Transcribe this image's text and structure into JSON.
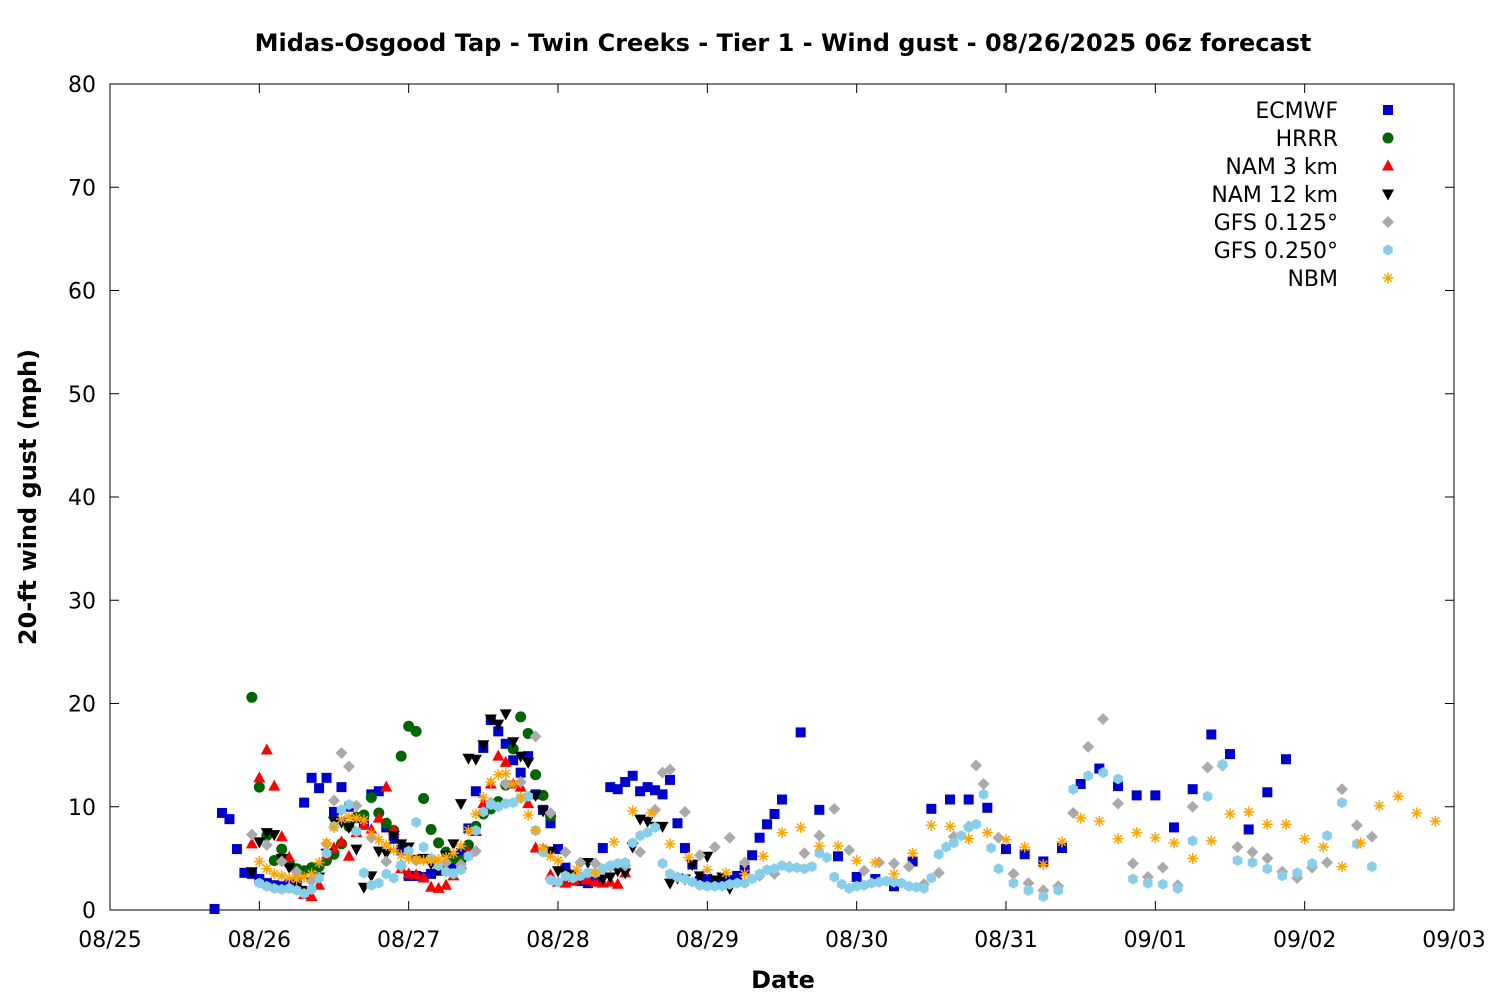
{
  "chart_data": {
    "type": "scatter",
    "title": "Midas-Osgood Tap - Twin Creeks - Tier 1 - Wind gust - 08/26/2025 06z forecast",
    "xlabel": "Date",
    "ylabel": "20-ft wind gust (mph)",
    "xlim": [
      "08/25",
      "09/03"
    ],
    "ylim": [
      0,
      80
    ],
    "x_ticks": [
      "08/25",
      "08/26",
      "08/27",
      "08/28",
      "08/29",
      "08/30",
      "08/31",
      "09/01",
      "09/02",
      "09/03"
    ],
    "y_ticks": [
      "0",
      "10",
      "20",
      "30",
      "40",
      "50",
      "60",
      "70",
      "80"
    ],
    "x_unit": "days from 08/25 00z",
    "grid": false,
    "legend_position": "top-right",
    "series": [
      {
        "name": "ECMWF",
        "marker": "square",
        "color": "#0000cc",
        "x": [
          0.7,
          0.75,
          0.8,
          0.85,
          0.9,
          0.95,
          1.0,
          1.05,
          1.1,
          1.15,
          1.2,
          1.25,
          1.3,
          1.35,
          1.4,
          1.45,
          1.5,
          1.55,
          1.6,
          1.65,
          1.7,
          1.75,
          1.8,
          1.85,
          1.9,
          1.95,
          2.0,
          2.05,
          2.1,
          2.15,
          2.2,
          2.25,
          2.3,
          2.35,
          2.4,
          2.45,
          2.5,
          2.55,
          2.6,
          2.65,
          2.7,
          2.75,
          2.8,
          2.85,
          2.9,
          2.95,
          3.0,
          3.05,
          3.1,
          3.15,
          3.2,
          3.25,
          3.3,
          3.35,
          3.4,
          3.45,
          3.5,
          3.55,
          3.6,
          3.65,
          3.7,
          3.75,
          3.8,
          3.85,
          3.9,
          3.95,
          4.0,
          4.05,
          4.1,
          4.15,
          4.2,
          4.25,
          4.3,
          4.35,
          4.4,
          4.45,
          4.5,
          4.625,
          4.75,
          4.875,
          5.0,
          5.125,
          5.25,
          5.375,
          5.5,
          5.625,
          5.75,
          5.875,
          6.0,
          6.125,
          6.25,
          6.375,
          6.5,
          6.625,
          6.75,
          6.875,
          7.0,
          7.125,
          7.25,
          7.375,
          7.5,
          7.625,
          7.75,
          7.875,
          8.0,
          8.125,
          8.25,
          8.375,
          8.5,
          8.625
        ],
        "y": [
          0.1,
          9.4,
          8.8,
          5.9,
          3.6,
          3.5,
          3.0,
          2.6,
          2.4,
          2.3,
          2.5,
          2.7,
          10.4,
          12.8,
          11.8,
          12.8,
          9.5,
          11.9,
          10.0,
          8.9,
          8.5,
          11.2,
          11.5,
          8.0,
          6.9,
          5.8,
          3.3,
          3.3,
          3.2,
          3.5,
          3.8,
          4.0,
          4.5,
          5.5,
          7.9,
          11.5,
          15.7,
          18.4,
          17.3,
          16.1,
          14.5,
          13.3,
          14.9,
          11.2,
          9.7,
          8.4,
          5.9,
          4.1,
          3.3,
          2.8,
          2.6,
          3.0,
          6.0,
          11.9,
          11.7,
          12.4,
          13.0,
          11.5,
          11.9,
          11.6,
          11.2,
          12.6,
          8.4,
          6.0,
          4.4,
          2.8,
          3.0,
          2.6,
          2.6,
          2.9,
          3.3,
          3.9,
          5.3,
          7.0,
          8.3,
          9.3,
          10.7,
          17.2,
          9.7,
          5.2,
          3.2,
          3.0,
          2.3,
          4.7,
          9.8,
          10.7,
          10.7,
          9.9,
          5.9,
          5.4,
          4.7,
          6.0,
          12.2,
          13.7,
          12.0,
          11.1,
          11.1,
          8.0,
          11.7,
          17.0,
          15.1,
          7.8,
          11.4,
          14.6,
          null,
          null,
          null,
          null,
          null,
          null
        ]
      },
      {
        "name": "HRRR",
        "marker": "circle",
        "color": "#006400",
        "x": [
          0.95,
          1.0,
          1.05,
          1.1,
          1.15,
          1.2,
          1.25,
          1.3,
          1.35,
          1.4,
          1.45,
          1.5,
          1.55,
          1.6,
          1.65,
          1.7,
          1.75,
          1.8,
          1.85,
          1.9,
          1.95,
          2.0,
          2.05,
          2.1,
          2.15,
          2.2,
          2.25,
          2.3,
          2.35,
          2.4,
          2.45,
          2.5,
          2.55,
          2.6,
          2.65,
          2.7,
          2.75,
          2.8,
          2.85,
          2.9,
          2.95
        ],
        "y": [
          20.6,
          11.9,
          7.2,
          4.8,
          5.9,
          4.5,
          4.0,
          3.8,
          4.1,
          4.2,
          4.8,
          5.4,
          6.4,
          8.1,
          9.0,
          9.2,
          10.9,
          9.4,
          8.4,
          7.7,
          14.9,
          17.8,
          17.3,
          10.8,
          7.8,
          6.5,
          5.6,
          5.0,
          4.8,
          6.3,
          8.1,
          9.3,
          9.8,
          10.5,
          12.1,
          15.6,
          18.7,
          17.1,
          13.1,
          11.1,
          9.1
        ]
      },
      {
        "name": "NAM 3 km",
        "marker": "triangle-up",
        "color": "#ff0000",
        "x": [
          0.95,
          1.0,
          1.05,
          1.1,
          1.15,
          1.2,
          1.25,
          1.3,
          1.35,
          1.4,
          1.45,
          1.5,
          1.55,
          1.6,
          1.65,
          1.7,
          1.75,
          1.8,
          1.85,
          1.9,
          1.95,
          2.0,
          2.05,
          2.1,
          2.15,
          2.2,
          2.25,
          2.3,
          2.35,
          2.4,
          2.45,
          2.5,
          2.55,
          2.6,
          2.65,
          2.7,
          2.75,
          2.8,
          2.85,
          2.9,
          2.95,
          3.0,
          3.05,
          3.1,
          3.15,
          3.2,
          3.25,
          3.3,
          3.35,
          3.4,
          3.45
        ],
        "y": [
          6.4,
          12.8,
          15.5,
          12.0,
          7.1,
          5.1,
          3.1,
          1.5,
          1.3,
          2.4,
          5.3,
          6.0,
          6.6,
          5.2,
          7.5,
          8.2,
          7.8,
          8.9,
          11.9,
          7.7,
          4.0,
          3.5,
          3.4,
          3.1,
          2.2,
          2.1,
          2.4,
          3.3,
          4.4,
          5.6,
          7.6,
          10.3,
          12.2,
          14.9,
          14.3,
          12.2,
          11.9,
          10.3,
          6.0,
          5.9,
          3.4,
          2.7,
          2.6,
          2.8,
          3.0,
          2.9,
          2.7,
          2.6,
          2.7,
          2.5,
          3.6
        ]
      },
      {
        "name": "NAM 12 km",
        "marker": "triangle-down",
        "color": "#000000",
        "x": [
          0.95,
          1.0,
          1.05,
          1.1,
          1.15,
          1.2,
          1.25,
          1.3,
          1.35,
          1.4,
          1.45,
          1.5,
          1.55,
          1.6,
          1.65,
          1.7,
          1.75,
          1.8,
          1.85,
          1.9,
          1.95,
          2.0,
          2.05,
          2.1,
          2.15,
          2.2,
          2.25,
          2.3,
          2.35,
          2.4,
          2.45,
          2.5,
          2.55,
          2.6,
          2.65,
          2.7,
          2.75,
          2.8,
          2.85,
          2.9,
          2.95,
          3.0,
          3.05,
          3.1,
          3.15,
          3.2,
          3.25,
          3.3,
          3.35,
          3.4,
          3.45,
          3.5,
          3.55,
          3.6,
          3.65,
          3.7,
          3.75,
          3.8,
          3.85,
          3.9,
          3.95,
          4.0,
          4.05,
          4.1,
          4.15,
          4.2,
          4.25,
          4.3,
          4.35,
          4.4,
          4.45
        ],
        "y": [
          3.7,
          6.6,
          7.5,
          7.3,
          5.0,
          4.1,
          2.6,
          1.9,
          2.7,
          3.2,
          5.5,
          8.6,
          8.5,
          8.0,
          5.9,
          2.2,
          3.3,
          5.7,
          5.5,
          7.2,
          6.4,
          6.1,
          4.9,
          5.0,
          4.5,
          4.0,
          5.3,
          6.4,
          10.3,
          14.7,
          14.6,
          16.0,
          18.5,
          18.0,
          19.0,
          16.3,
          14.9,
          14.3,
          11.1,
          9.6,
          5.7,
          3.8,
          3.5,
          3.5,
          3.2,
          4.6,
          3.5,
          3.0,
          3.2,
          3.8,
          3.6,
          6.1,
          8.8,
          8.6,
          8.1,
          8.1,
          2.6,
          3.1,
          3.0,
          4.4,
          3.3,
          5.2,
          2.9,
          3.2,
          2.1,
          null,
          null,
          null,
          null,
          null,
          null
        ]
      },
      {
        "name": "GFS 0.125°",
        "marker": "diamond",
        "color": "#aaaaaa",
        "x": [
          0.95,
          1.05,
          1.15,
          1.25,
          1.35,
          1.45,
          1.5,
          1.55,
          1.6,
          1.65,
          1.75,
          1.85,
          1.95,
          2.05,
          2.15,
          2.25,
          2.35,
          2.45,
          2.55,
          2.65,
          2.75,
          2.85,
          2.95,
          3.05,
          3.15,
          3.25,
          3.35,
          3.45,
          3.55,
          3.65,
          3.7,
          3.75,
          3.85,
          3.95,
          4.05,
          4.15,
          4.25,
          4.35,
          4.45,
          4.55,
          4.65,
          4.75,
          4.85,
          4.95,
          5.05,
          5.15,
          5.25,
          5.35,
          5.45,
          5.55,
          5.65,
          5.75,
          5.8,
          5.85,
          5.95,
          6.05,
          6.15,
          6.25,
          6.35,
          6.45,
          6.55,
          6.65,
          6.75,
          6.85,
          6.95,
          7.05,
          7.15,
          7.25,
          7.35,
          7.45,
          7.55,
          7.65,
          7.75,
          7.85,
          7.95,
          8.05,
          8.15,
          8.25,
          8.35,
          8.45,
          8.55,
          8.65,
          8.75,
          8.85,
          8.95
        ],
        "y": [
          7.3,
          6.3,
          4.7,
          3.7,
          2.8,
          6.4,
          10.6,
          15.2,
          13.9,
          10.1,
          7.0,
          4.7,
          4.2,
          4.8,
          5.0,
          4.6,
          4.4,
          5.7,
          10.4,
          12.2,
          12.4,
          16.8,
          9.4,
          5.6,
          4.6,
          4.5,
          4.2,
          4.3,
          5.6,
          9.7,
          13.3,
          13.6,
          9.5,
          5.3,
          6.1,
          7.0,
          4.6,
          3.3,
          3.5,
          4.2,
          5.5,
          7.2,
          9.8,
          5.8,
          3.8,
          4.6,
          4.5,
          4.2,
          2.5,
          3.6,
          7.1,
          8.1,
          14.0,
          12.2,
          7.0,
          3.5,
          2.6,
          1.9,
          2.3,
          9.4,
          15.8,
          18.5,
          10.3,
          4.5,
          3.2,
          4.1,
          2.4,
          10.0,
          13.8,
          14.0,
          6.1,
          5.6,
          5.0,
          3.7,
          3.1,
          4.1,
          4.6,
          11.7,
          8.2,
          7.1,
          null,
          null,
          null,
          null,
          null
        ]
      },
      {
        "name": "GFS 0.250°",
        "marker": "hexagon",
        "color": "#87ceeb",
        "x": [
          1.0,
          1.05,
          1.1,
          1.15,
          1.2,
          1.25,
          1.3,
          1.35,
          1.4,
          1.45,
          1.5,
          1.55,
          1.6,
          1.65,
          1.7,
          1.75,
          1.8,
          1.85,
          1.9,
          1.95,
          2.0,
          2.05,
          2.1,
          2.15,
          2.2,
          2.25,
          2.3,
          2.35,
          2.4,
          2.45,
          2.5,
          2.55,
          2.6,
          2.65,
          2.7,
          2.75,
          2.8,
          2.85,
          2.9,
          2.95,
          3.0,
          3.05,
          3.1,
          3.15,
          3.2,
          3.25,
          3.3,
          3.35,
          3.4,
          3.45,
          3.5,
          3.55,
          3.6,
          3.65,
          3.7,
          3.75,
          3.8,
          3.85,
          3.9,
          3.95,
          4.0,
          4.05,
          4.1,
          4.15,
          4.2,
          4.25,
          4.3,
          4.35,
          4.4,
          4.45,
          4.5,
          4.55,
          4.6,
          4.65,
          4.7,
          4.75,
          4.8,
          4.85,
          4.9,
          4.95,
          5.0,
          5.05,
          5.1,
          5.15,
          5.2,
          5.25,
          5.3,
          5.35,
          5.4,
          5.45,
          5.5,
          5.55,
          5.6,
          5.65,
          5.7,
          5.75,
          5.8,
          5.85,
          5.9,
          5.95,
          6.05,
          6.15,
          6.25,
          6.35,
          6.45,
          6.55,
          6.65,
          6.75,
          6.85,
          6.95,
          7.05,
          7.15,
          7.25,
          7.35,
          7.45,
          7.55,
          7.65,
          7.75,
          7.85,
          7.95,
          8.05,
          8.15,
          8.25,
          8.35,
          8.45,
          8.55
        ],
        "y": [
          2.6,
          2.3,
          2.1,
          2.0,
          2.1,
          1.9,
          1.6,
          2.0,
          3.1,
          5.5,
          8.1,
          9.7,
          10.2,
          7.6,
          3.6,
          2.4,
          2.6,
          3.5,
          3.1,
          4.4,
          5.7,
          8.5,
          6.1,
          5.0,
          4.3,
          3.7,
          3.5,
          3.9,
          5.2,
          7.7,
          9.5,
          10.2,
          10.0,
          10.3,
          10.4,
          10.8,
          11.0,
          7.7,
          5.6,
          2.9,
          2.7,
          3.3,
          3.1,
          3.3,
          3.6,
          3.6,
          4.0,
          4.3,
          4.5,
          4.6,
          6.5,
          7.2,
          7.5,
          8.0,
          4.5,
          3.5,
          3.2,
          3.0,
          2.7,
          2.4,
          2.3,
          2.3,
          2.3,
          2.5,
          2.6,
          2.6,
          3.0,
          3.5,
          3.9,
          4.0,
          4.3,
          4.1,
          4.1,
          4.0,
          4.2,
          5.5,
          5.1,
          3.2,
          2.5,
          2.1,
          2.3,
          2.4,
          2.6,
          2.7,
          2.8,
          2.7,
          2.6,
          2.3,
          2.2,
          2.1,
          3.1,
          5.4,
          6.1,
          6.5,
          7.2,
          8.0,
          8.3,
          11.2,
          6.0,
          4.0,
          2.6,
          1.9,
          1.3,
          1.9,
          11.7,
          13.0,
          13.3,
          12.7,
          3.0,
          2.6,
          2.5,
          2.1,
          6.7,
          11.0,
          14.1,
          4.8,
          4.6,
          4.0,
          3.3,
          3.6,
          4.5,
          7.2,
          10.4,
          6.4,
          4.2,
          null
        ]
      },
      {
        "name": "NBM",
        "marker": "asterisk",
        "color": "#ffa500",
        "x": [
          1.0,
          1.05,
          1.1,
          1.15,
          1.2,
          1.25,
          1.3,
          1.35,
          1.4,
          1.45,
          1.5,
          1.55,
          1.6,
          1.65,
          1.7,
          1.75,
          1.8,
          1.85,
          1.9,
          1.95,
          2.0,
          2.05,
          2.1,
          2.15,
          2.2,
          2.25,
          2.3,
          2.35,
          2.4,
          2.45,
          2.5,
          2.55,
          2.6,
          2.65,
          2.7,
          2.75,
          2.8,
          2.85,
          2.9,
          2.95,
          3.0,
          3.125,
          3.25,
          3.375,
          3.5,
          3.625,
          3.75,
          3.875,
          4.0,
          4.125,
          4.25,
          4.375,
          4.5,
          4.625,
          4.75,
          4.875,
          5.0,
          5.125,
          5.25,
          5.375,
          5.5,
          5.625,
          5.75,
          5.875,
          6.0,
          6.125,
          6.25,
          6.375,
          6.5,
          6.625,
          6.75,
          6.875,
          7.0,
          7.125,
          7.25,
          7.375,
          7.5,
          7.625,
          7.75,
          7.875,
          8.0,
          8.125,
          8.25,
          8.375,
          8.5,
          8.625,
          8.75,
          8.875,
          9.0
        ],
        "y": [
          4.7,
          4.0,
          3.5,
          3.3,
          3.1,
          3.0,
          3.2,
          3.5,
          4.6,
          6.5,
          8.0,
          8.8,
          9.0,
          8.9,
          8.7,
          7.4,
          6.8,
          6.3,
          5.8,
          5.3,
          5.0,
          4.9,
          4.8,
          4.8,
          4.9,
          5.1,
          5.5,
          6.2,
          7.7,
          9.3,
          10.9,
          12.4,
          13.1,
          13.2,
          12.2,
          10.9,
          9.2,
          7.7,
          6.0,
          5.2,
          4.8,
          3.9,
          3.6,
          6.6,
          9.6,
          9.4,
          6.4,
          5.1,
          3.9,
          3.6,
          3.5,
          5.2,
          7.5,
          8.0,
          6.2,
          6.2,
          4.8,
          4.6,
          3.5,
          5.5,
          8.2,
          8.1,
          6.9,
          7.5,
          6.8,
          6.1,
          4.4,
          6.6,
          8.9,
          8.6,
          6.9,
          7.5,
          7.0,
          6.5,
          5.0,
          6.7,
          9.3,
          9.5,
          8.3,
          8.3,
          6.9,
          6.1,
          4.2,
          6.5,
          10.1,
          11.0,
          9.4,
          8.6,
          null
        ]
      }
    ]
  }
}
